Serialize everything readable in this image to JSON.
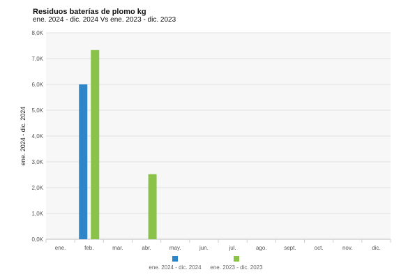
{
  "colors": {
    "series_1": "#2e86c8",
    "series_2": "#8bc34a",
    "plot_bg": "#f7f7f7",
    "grid": "#e0e0e0"
  },
  "chart_data": {
    "type": "bar",
    "title": "Residuos baterías de plomo kg",
    "subtitle": "ene. 2024 - dic. 2024 Vs ene. 2023 - dic. 2023",
    "ylabel": "ene. 2024 - dic. 2024",
    "xlabel": "",
    "ylim": [
      0,
      8000
    ],
    "yticks": [
      0,
      1000,
      2000,
      3000,
      4000,
      5000,
      6000,
      7000,
      8000
    ],
    "ytick_labels": [
      "0,0K",
      "1,0K",
      "2,0K",
      "3,0K",
      "4,0K",
      "5,0K",
      "6,0K",
      "7,0K",
      "8,0K"
    ],
    "categories": [
      "ene.",
      "feb.",
      "mar.",
      "abr.",
      "may.",
      "jun.",
      "jul.",
      "ago.",
      "sept.",
      "oct.",
      "nov.",
      "dic."
    ],
    "series": [
      {
        "name": "ene. 2024 - dic. 2024",
        "color": "#2e86c8",
        "values": [
          0,
          6000,
          0,
          0,
          0,
          0,
          0,
          0,
          0,
          0,
          0,
          0
        ]
      },
      {
        "name": "ene. 2023 - dic. 2023",
        "color": "#8bc34a",
        "values": [
          0,
          7330,
          0,
          2520,
          0,
          0,
          0,
          0,
          0,
          0,
          0,
          0
        ]
      }
    ],
    "grid": true,
    "legend_position": "bottom"
  }
}
